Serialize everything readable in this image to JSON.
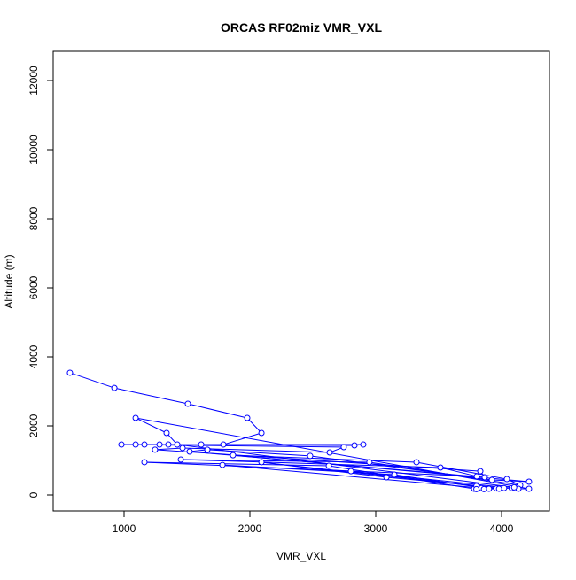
{
  "chart_data": {
    "type": "line",
    "title": "ORCAS RF02miz VMR_VXL",
    "xlabel": "VMR_VXL",
    "ylabel": "Altitude (m)",
    "xlim": [
      500,
      4250
    ],
    "ylim": [
      0,
      12800
    ],
    "xticks": [
      1000,
      2000,
      3000,
      4000
    ],
    "yticks": [
      0,
      2000,
      4000,
      6000,
      8000,
      10000,
      12000
    ],
    "xtick_labels": [
      "1000",
      "2000",
      "3000",
      "4000"
    ],
    "ytick_labels": [
      "0",
      "2000",
      "4000",
      "6000",
      "8000",
      "10000",
      "12000"
    ],
    "color": "#0000ff",
    "series": [
      {
        "name": "VMR_VXL",
        "points": [
          [
            570,
            3540
          ],
          [
            923,
            3100
          ],
          [
            1507,
            2640
          ],
          [
            1979,
            2230
          ],
          [
            2092,
            1795
          ],
          [
            1789,
            1460
          ],
          [
            1613,
            1460
          ],
          [
            2901,
            1460
          ],
          [
            2831,
            1435
          ],
          [
            1352,
            1460
          ],
          [
            1282,
            1460
          ],
          [
            1162,
            1460
          ],
          [
            1092,
            1460
          ],
          [
            979,
            1460
          ],
          [
            2746,
            1385
          ],
          [
            2634,
            1230
          ],
          [
            1465,
            1360
          ],
          [
            1246,
            1310
          ],
          [
            3831,
            690
          ],
          [
            3866,
            513
          ],
          [
            1521,
            1256
          ],
          [
            1662,
            1310
          ],
          [
            2479,
            1130
          ],
          [
            3923,
            436
          ],
          [
            4218,
            385
          ],
          [
            1866,
            1150
          ],
          [
            3324,
            950
          ],
          [
            4042,
            460
          ],
          [
            4148,
            282
          ],
          [
            2950,
            950
          ],
          [
            1451,
            1025
          ],
          [
            3514,
            795
          ],
          [
            3803,
            540
          ],
          [
            1162,
            950
          ],
          [
            2627,
            846
          ],
          [
            3782,
            180
          ],
          [
            3840,
            200
          ],
          [
            1782,
            870
          ],
          [
            3148,
            590
          ],
          [
            3900,
            180
          ],
          [
            3960,
            190
          ],
          [
            2092,
            950
          ],
          [
            3085,
            513
          ],
          [
            4020,
            200
          ],
          [
            4080,
            200
          ],
          [
            2803,
            690
          ],
          [
            3800,
            260
          ],
          [
            4134,
            180
          ],
          [
            4218,
            180
          ],
          [
            1092,
            2230
          ],
          [
            1338,
            1795
          ],
          [
            1423,
            1460
          ],
          [
            4100,
            220
          ],
          [
            3980,
            180
          ],
          [
            3860,
            170
          ],
          [
            3800,
            170
          ]
        ]
      }
    ]
  }
}
